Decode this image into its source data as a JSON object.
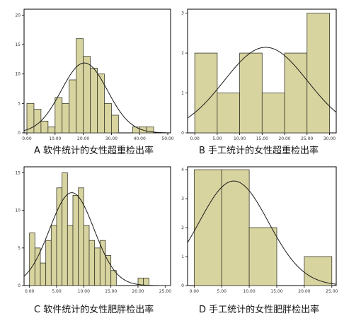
{
  "colors": {
    "bar_fill": "#d8d4a0",
    "bar_stroke": "#3a3a2a",
    "frame": "#000000",
    "curve": "#1a1a1a",
    "axis_text": "#333333"
  },
  "captions": {
    "a": "A 软件统计的女性超重检出率",
    "b": "B 手工统计的女性超重检出率",
    "c": "C 软件统计的女性肥胖检出率",
    "d": "D 手工统计的女性肥胖检出率"
  },
  "chart_data": [
    {
      "id": "a",
      "type": "bar",
      "title": "",
      "bin_edges": [
        0,
        2.5,
        5,
        7.5,
        10,
        12.5,
        15,
        17.5,
        20,
        22.5,
        25,
        27.5,
        30,
        32.5,
        35,
        37.5,
        40,
        42.5,
        45
      ],
      "values": [
        5,
        4,
        2,
        1,
        6,
        5,
        9,
        16,
        13,
        11,
        10,
        5,
        3,
        0,
        0,
        1,
        1,
        1
      ],
      "normal_curve": {
        "mean": 20.4,
        "sd": 8.2,
        "scale": 244
      },
      "xlim": [
        -1,
        51
      ],
      "ylim": [
        0,
        21
      ],
      "x_ticks": [
        "0.00",
        "10.00",
        "20.00",
        "30.00",
        "40.00",
        "50.00"
      ],
      "x_tick_values": [
        0,
        10,
        20,
        30,
        40,
        50
      ],
      "y_ticks": [
        "0",
        "5",
        "10",
        "15",
        "20"
      ],
      "y_tick_values": [
        0,
        5,
        10,
        15,
        20
      ]
    },
    {
      "id": "b",
      "type": "bar",
      "title": "",
      "bin_edges": [
        0,
        5,
        10,
        15,
        20,
        25,
        30
      ],
      "values": [
        2,
        1,
        2,
        1,
        2,
        3
      ],
      "normal_curve": {
        "mean": 15.8,
        "sd": 9.3,
        "scale": 50
      },
      "xlim": [
        -1.6,
        31.5
      ],
      "ylim": [
        0,
        3.1
      ],
      "x_ticks": [
        "0.00",
        "5.00",
        "10.00",
        "15.00",
        "20.00",
        "25.00",
        "30.00"
      ],
      "x_tick_values": [
        0,
        5,
        10,
        15,
        20,
        25,
        30
      ],
      "y_ticks": [
        "0",
        "1",
        "2",
        "3"
      ],
      "y_tick_values": [
        0,
        1,
        2,
        3
      ]
    },
    {
      "id": "c",
      "type": "bar",
      "title": "",
      "bin_edges": [
        0,
        1,
        2,
        3,
        4,
        5,
        6,
        7,
        8,
        9,
        10,
        11,
        12,
        13,
        14,
        15,
        16,
        17,
        18,
        19,
        20,
        21,
        22
      ],
      "values": [
        7,
        5,
        3,
        6,
        8,
        13,
        15,
        8,
        12,
        13,
        8,
        6,
        5,
        6,
        4,
        2,
        0,
        0,
        0,
        0,
        1,
        1
      ],
      "normal_curve": {
        "mean": 7.8,
        "sd": 4.1,
        "scale": 127
      },
      "xlim": [
        -1,
        26
      ],
      "ylim": [
        0,
        15.8
      ],
      "x_ticks": [
        "0.00",
        "5.00",
        "10.00",
        "15.00",
        "20.00",
        "25.00"
      ],
      "x_tick_values": [
        0,
        5,
        10,
        15,
        20,
        25
      ],
      "y_ticks": [
        "0",
        "5",
        "10",
        "15"
      ],
      "y_tick_values": [
        0,
        5,
        10,
        15
      ]
    },
    {
      "id": "d",
      "type": "bar",
      "title": "",
      "bin_edges": [
        0,
        5,
        10,
        15,
        20,
        25
      ],
      "values": [
        4,
        4,
        2,
        0,
        1
      ],
      "normal_curve": {
        "mean": 7.2,
        "sd": 6.3,
        "scale": 57
      },
      "xlim": [
        -1.2,
        25.8
      ],
      "ylim": [
        0,
        4.1
      ],
      "x_ticks": [
        "0.00",
        "5.00",
        "10.00",
        "15.00",
        "20.00",
        "25.00"
      ],
      "x_tick_values": [
        0,
        5,
        10,
        15,
        20,
        25
      ],
      "y_ticks": [
        "0",
        "1",
        "2",
        "3",
        "4"
      ],
      "y_tick_values": [
        0,
        1,
        2,
        3,
        4
      ]
    }
  ]
}
